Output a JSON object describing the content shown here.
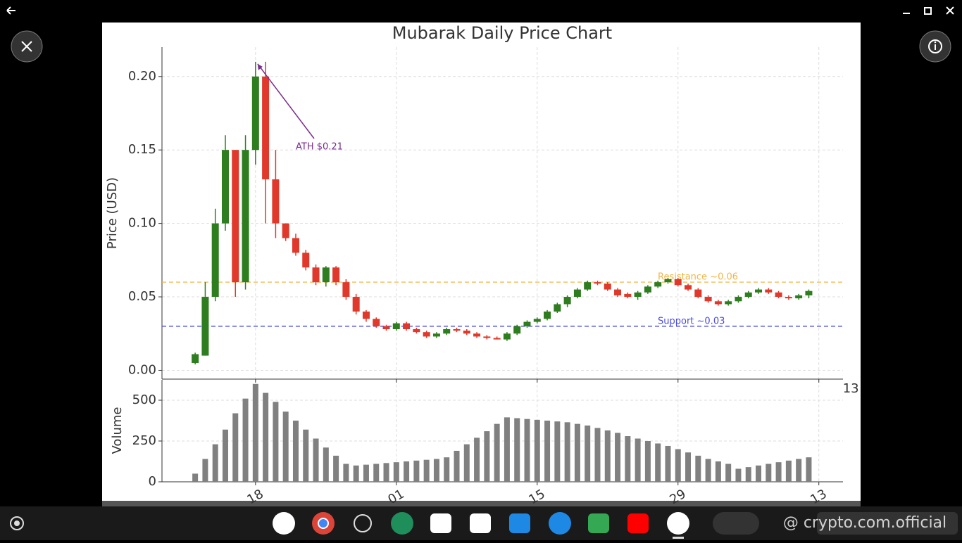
{
  "chart_data": {
    "type": "candlestick",
    "title": "Mubarak Daily Price Chart",
    "ylabel": "Price (USD)",
    "x": [
      0,
      1,
      2,
      3,
      4,
      5,
      6,
      7,
      8,
      9,
      10,
      11,
      12,
      13,
      14,
      15,
      16,
      17,
      18,
      19,
      20,
      21,
      22,
      23,
      24,
      25,
      26,
      27,
      28,
      29,
      30,
      31,
      32,
      33,
      34,
      35,
      36,
      37,
      38,
      39,
      40,
      41,
      42,
      43,
      44,
      45,
      46,
      47,
      48,
      49,
      50,
      51,
      52,
      53,
      54,
      55,
      56,
      57,
      58,
      59,
      60,
      61
    ],
    "open": [
      0.005,
      0.01,
      0.05,
      0.1,
      0.15,
      0.06,
      0.15,
      0.2,
      0.13,
      0.1,
      0.09,
      0.08,
      0.07,
      0.06,
      0.07,
      0.06,
      0.05,
      0.04,
      0.035,
      0.03,
      0.028,
      0.032,
      0.028,
      0.026,
      0.023,
      0.025,
      0.028,
      0.027,
      0.025,
      0.023,
      0.022,
      0.021,
      0.025,
      0.03,
      0.033,
      0.035,
      0.04,
      0.045,
      0.05,
      0.055,
      0.06,
      0.059,
      0.055,
      0.052,
      0.05,
      0.053,
      0.057,
      0.06,
      0.062,
      0.058,
      0.055,
      0.05,
      0.047,
      0.045,
      0.047,
      0.05,
      0.053,
      0.055,
      0.053,
      0.05,
      0.049,
      0.051
    ],
    "high": [
      0.012,
      0.06,
      0.11,
      0.16,
      0.15,
      0.16,
      0.21,
      0.21,
      0.15,
      0.1,
      0.093,
      0.082,
      0.072,
      0.071,
      0.071,
      0.062,
      0.052,
      0.041,
      0.036,
      0.031,
      0.033,
      0.033,
      0.029,
      0.027,
      0.026,
      0.029,
      0.029,
      0.028,
      0.026,
      0.024,
      0.023,
      0.026,
      0.031,
      0.034,
      0.036,
      0.041,
      0.046,
      0.051,
      0.056,
      0.061,
      0.061,
      0.06,
      0.056,
      0.053,
      0.054,
      0.058,
      0.061,
      0.063,
      0.063,
      0.059,
      0.056,
      0.051,
      0.048,
      0.048,
      0.051,
      0.054,
      0.056,
      0.056,
      0.054,
      0.051,
      0.052,
      0.055
    ],
    "low": [
      0.004,
      0.01,
      0.047,
      0.095,
      0.05,
      0.055,
      0.14,
      0.1,
      0.09,
      0.088,
      0.078,
      0.068,
      0.058,
      0.057,
      0.058,
      0.048,
      0.038,
      0.033,
      0.029,
      0.027,
      0.027,
      0.027,
      0.025,
      0.022,
      0.022,
      0.024,
      0.026,
      0.024,
      0.022,
      0.021,
      0.021,
      0.02,
      0.024,
      0.029,
      0.032,
      0.034,
      0.039,
      0.043,
      0.049,
      0.054,
      0.058,
      0.054,
      0.05,
      0.049,
      0.048,
      0.052,
      0.056,
      0.059,
      0.057,
      0.054,
      0.049,
      0.046,
      0.044,
      0.044,
      0.046,
      0.049,
      0.052,
      0.052,
      0.049,
      0.048,
      0.048,
      0.049
    ],
    "close": [
      0.011,
      0.05,
      0.1,
      0.15,
      0.06,
      0.15,
      0.2,
      0.13,
      0.1,
      0.09,
      0.08,
      0.07,
      0.06,
      0.07,
      0.06,
      0.05,
      0.04,
      0.035,
      0.03,
      0.028,
      0.032,
      0.028,
      0.026,
      0.023,
      0.025,
      0.028,
      0.027,
      0.025,
      0.023,
      0.022,
      0.021,
      0.025,
      0.03,
      0.033,
      0.035,
      0.04,
      0.045,
      0.05,
      0.055,
      0.06,
      0.059,
      0.055,
      0.051,
      0.05,
      0.053,
      0.057,
      0.06,
      0.062,
      0.058,
      0.055,
      0.05,
      0.047,
      0.045,
      0.047,
      0.05,
      0.053,
      0.055,
      0.053,
      0.05,
      0.049,
      0.051,
      0.054
    ],
    "up_color": "#2e7d1f",
    "down_color": "#e0382a",
    "xlim": [
      -3.3,
      64.4
    ],
    "xticks": [
      {
        "value": 6,
        "label": "18"
      },
      {
        "value": 20,
        "label": "01"
      },
      {
        "value": 34,
        "label": "15"
      },
      {
        "value": 48,
        "label": "29"
      },
      {
        "value": 62,
        "label": "13"
      }
    ],
    "ylim": [
      -0.006,
      0.22
    ],
    "yticks": [
      {
        "value": 0,
        "label": "0.00"
      },
      {
        "value": 0.05,
        "label": "0.05"
      },
      {
        "value": 0.1,
        "label": "0.10"
      },
      {
        "value": 0.15,
        "label": "0.15"
      },
      {
        "value": 0.2,
        "label": "0.20"
      }
    ],
    "grid": true,
    "hlines": [
      {
        "value": 0.06,
        "label": "Resistance ~0.06",
        "color": "#f2b544"
      },
      {
        "value": 0.03,
        "label": "Support ~0.03",
        "color": "#4a4ae0"
      }
    ],
    "annotation": {
      "text": "ATH $0.21",
      "value": 0.21,
      "color": "#7a2d8c"
    },
    "volume": {
      "ylabel": "Volume",
      "color": "#808080",
      "ylim": [
        0,
        625
      ],
      "yticks": [
        0,
        250,
        500
      ],
      "values": [
        50,
        140,
        230,
        320,
        420,
        510,
        600,
        545,
        490,
        430,
        375,
        320,
        265,
        210,
        160,
        110,
        100,
        105,
        110,
        115,
        120,
        125,
        130,
        135,
        140,
        150,
        190,
        230,
        270,
        310,
        355,
        395,
        390,
        385,
        380,
        375,
        370,
        365,
        355,
        345,
        330,
        315,
        300,
        280,
        265,
        250,
        235,
        220,
        200,
        180,
        160,
        140,
        125,
        110,
        80,
        90,
        100,
        110,
        120,
        130,
        140,
        150
      ]
    }
  },
  "ui": {
    "watermark": "@ crypto.com.official"
  }
}
